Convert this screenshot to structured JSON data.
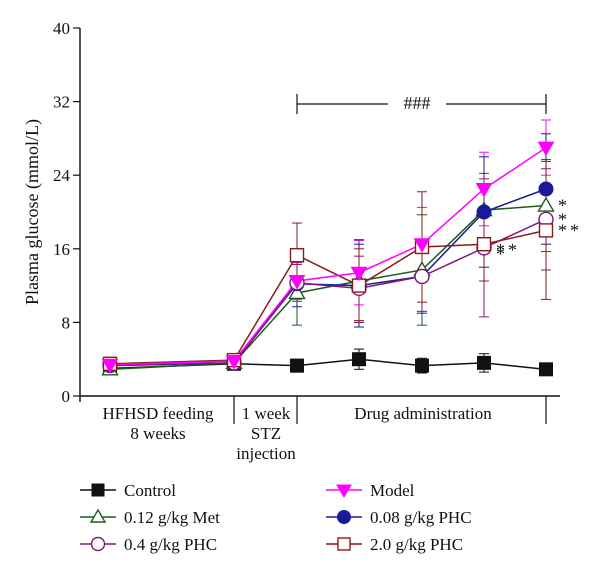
{
  "chart_data": {
    "type": "line",
    "ylabel": "Plasma glucose (mmol/L)",
    "ylim": [
      0,
      40
    ],
    "yticks": [
      "0",
      "8",
      "16",
      "24",
      "32",
      "40"
    ],
    "phases": [
      {
        "lines": [
          "HFHSD feeding",
          "8 weeks"
        ]
      },
      {
        "lines": [
          "1 week",
          "STZ",
          "injection"
        ]
      },
      {
        "lines": [
          "Drug administration"
        ]
      }
    ],
    "significance_label": "###",
    "series": [
      {
        "name": "Control",
        "color": "#111111",
        "marker": "square-filled",
        "values": [
          3.0,
          3.5,
          3.3,
          4.0,
          3.3,
          3.6,
          2.9
        ],
        "errors": [
          0.3,
          0.3,
          0.7,
          1.1,
          0.8,
          1.0,
          0.3
        ]
      },
      {
        "name": "Model",
        "color": "#ff00ff",
        "marker": "triangle-down-filled",
        "values": [
          3.4,
          3.8,
          12.5,
          13.4,
          16.5,
          22.5,
          27.0
        ],
        "errors": [
          0.4,
          0.4,
          2.0,
          3.5,
          4.0,
          4.0,
          3.0
        ]
      },
      {
        "name": "0.12 g/kg Met",
        "color": "#1a5c1a",
        "marker": "triangle-up-open",
        "values": [
          2.9,
          3.6,
          11.2,
          12.5,
          13.7,
          20.2,
          20.7
        ],
        "errors": [
          0.4,
          0.3,
          3.5,
          4.5,
          6.0,
          4.0,
          5.0
        ],
        "annotations": [
          "",
          "",
          "",
          "",
          "",
          "",
          "*"
        ]
      },
      {
        "name": "0.08 g/kg PHC",
        "color": "#1a1a99",
        "marker": "circle-filled",
        "values": [
          3.3,
          3.6,
          12.2,
          12.0,
          13.0,
          20.0,
          22.5
        ],
        "errors": [
          0.4,
          0.3,
          2.5,
          4.5,
          4.0,
          6.0,
          6.0
        ]
      },
      {
        "name": "0.4 g/kg PHC",
        "color": "#7a1a7a",
        "marker": "circle-open",
        "values": [
          3.4,
          3.6,
          12.3,
          11.7,
          13.0,
          16.1,
          19.2
        ],
        "errors": [
          0.4,
          0.3,
          2.0,
          3.5,
          3.8,
          7.5,
          5.5
        ],
        "annotations": [
          "",
          "",
          "",
          "",
          "",
          "*",
          "*"
        ]
      },
      {
        "name": "2.0 g/kg PHC",
        "color": "#8b1a1a",
        "marker": "square-open",
        "values": [
          3.5,
          3.9,
          15.3,
          12.0,
          16.2,
          16.5,
          18.0
        ],
        "errors": [
          0.4,
          0.3,
          3.5,
          4.0,
          6.0,
          4.0,
          7.5
        ],
        "annotations": [
          "",
          "",
          "",
          "",
          "",
          "**",
          "**"
        ]
      }
    ]
  }
}
